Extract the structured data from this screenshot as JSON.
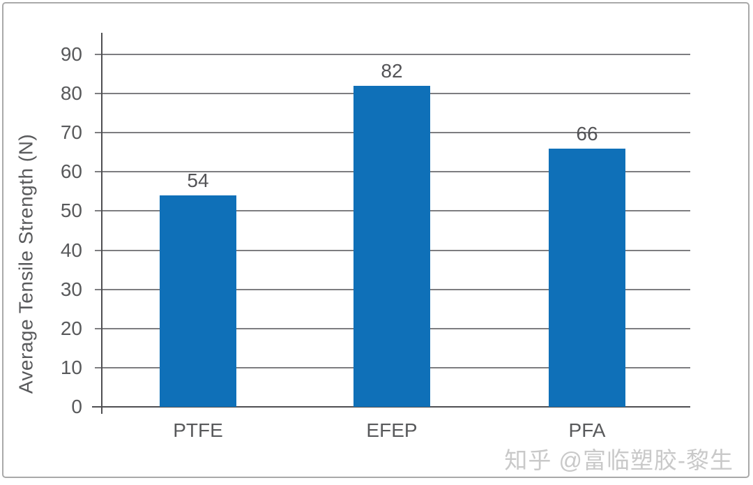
{
  "chart_data": {
    "type": "bar",
    "title": "",
    "categories": [
      "PTFE",
      "EFEP",
      "PFA"
    ],
    "values": [
      54,
      82,
      66
    ],
    "data_labels": [
      "54",
      "82",
      "66"
    ],
    "xlabel": "",
    "ylabel": "Average Tensile Strength (N)",
    "ylim": [
      0,
      95
    ],
    "yticks": [
      0,
      10,
      20,
      30,
      40,
      50,
      60,
      70,
      80,
      90
    ],
    "grid": "horizontal",
    "legend": "none",
    "bar_color": "#0f70b8"
  },
  "colors": {
    "bar": "#0f70b8",
    "axis": "#4f4f52",
    "gridline": "#7d7d80",
    "text": "#58595b",
    "watermark": "#c9c9c9",
    "frame_border": "#a9a9a9"
  },
  "watermark": {
    "text": "知乎 @富临塑胶-黎生"
  }
}
